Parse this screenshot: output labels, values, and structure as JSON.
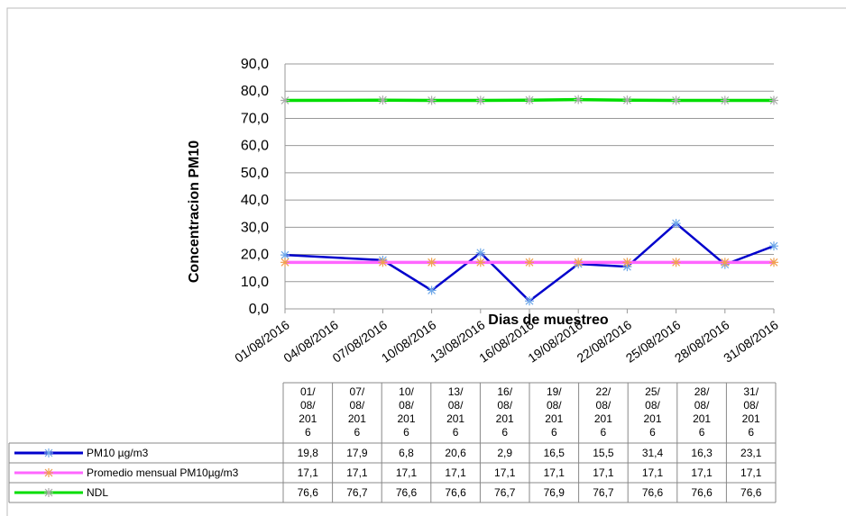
{
  "chart_data": {
    "type": "line",
    "y_label": "Concentracion  PM10",
    "x_label": "Dias de muestreo",
    "x": [
      "01/08/2016",
      "07/08/2016",
      "10/08/2016",
      "13/08/2016",
      "16/08/2016",
      "19/08/2016",
      "22/08/2016",
      "25/08/2016",
      "28/08/2016",
      "31/08/2016"
    ],
    "xticks": [
      "01/08/2016",
      "04/08/2016",
      "07/08/2016",
      "10/08/2016",
      "13/08/2016",
      "16/08/2016",
      "19/08/2016",
      "22/08/2016",
      "25/08/2016",
      "28/08/2016",
      "31/08/2016"
    ],
    "ylim": [
      0,
      90
    ],
    "yticks": [
      {
        "value": 0,
        "label": "0,0"
      },
      {
        "value": 10,
        "label": "10,0"
      },
      {
        "value": 20,
        "label": "20,0"
      },
      {
        "value": 30,
        "label": "30,0"
      },
      {
        "value": 40,
        "label": "40,0"
      },
      {
        "value": 50,
        "label": "50,0"
      },
      {
        "value": 60,
        "label": "60,0"
      },
      {
        "value": 70,
        "label": "70,0"
      },
      {
        "value": 80,
        "label": "80,0"
      },
      {
        "value": 90,
        "label": "90,0"
      }
    ],
    "grid": true,
    "series": [
      {
        "name": "PM10 µg/m3",
        "color": "#0000cc",
        "marker_color": "#6fa8e8",
        "values": [
          19.8,
          17.9,
          6.8,
          20.6,
          2.9,
          16.5,
          15.5,
          31.4,
          16.3,
          23.1
        ],
        "value_labels": [
          "19,8",
          "17,9",
          "6,8",
          "20,6",
          "2,9",
          "16,5",
          "15,5",
          "31,4",
          "16,3",
          "23,1"
        ]
      },
      {
        "name": "Promedio mensual PM10µg/m3",
        "color": "#ff66ff",
        "marker_color": "#f0a050",
        "values": [
          17.1,
          17.1,
          17.1,
          17.1,
          17.1,
          17.1,
          17.1,
          17.1,
          17.1,
          17.1
        ],
        "value_labels": [
          "17,1",
          "17,1",
          "17,1",
          "17,1",
          "17,1",
          "17,1",
          "17,1",
          "17,1",
          "17,1",
          "17,1"
        ]
      },
      {
        "name": "NDL",
        "color": "#00dd00",
        "marker_color": "#aaaaaa",
        "values": [
          76.6,
          76.7,
          76.6,
          76.6,
          76.7,
          76.9,
          76.7,
          76.6,
          76.6,
          76.6
        ],
        "value_labels": [
          "76,6",
          "76,7",
          "76,6",
          "76,6",
          "76,7",
          "76,9",
          "76,7",
          "76,6",
          "76,6",
          "76,6"
        ]
      }
    ]
  }
}
